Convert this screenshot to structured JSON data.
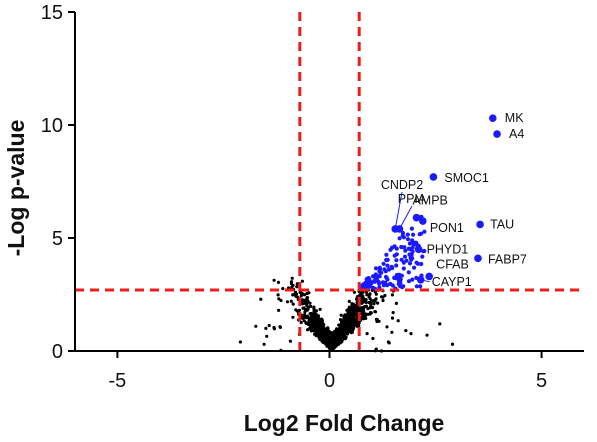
{
  "chart_data": {
    "type": "scatter",
    "title": "",
    "xlabel": "Log2 Fold Change",
    "ylabel": "-Log p-value",
    "xlim": [
      -6,
      6
    ],
    "ylim": [
      0,
      15
    ],
    "x_ticks": [
      -5,
      0,
      5
    ],
    "y_ticks": [
      0,
      5,
      10,
      15
    ],
    "x_tick_labels": [
      "-5",
      "0",
      "5"
    ],
    "y_tick_labels": [
      "0",
      "5",
      "10",
      "15"
    ],
    "grid": false,
    "legend": "none",
    "thresholds": {
      "log2fc_low": -0.7,
      "log2fc_high": 0.7,
      "neg_log_p": 2.7,
      "line_color": "#ee1c1c",
      "line_style": "dashed"
    },
    "colors": {
      "significant_up": "#1a1aff",
      "not_significant": "#000000",
      "axis": "#000000"
    },
    "background_points_note": "thousands of unlabeled black points clustered near x=0, y<3 (V-shaped)",
    "labeled_points": [
      {
        "label": "MK",
        "x": 3.85,
        "y": 10.3
      },
      {
        "label": "A4",
        "x": 3.95,
        "y": 9.6
      },
      {
        "label": "SMOC1",
        "x": 2.45,
        "y": 7.7
      },
      {
        "label": "CNDP2",
        "x": 1.55,
        "y": 5.4
      },
      {
        "label": "PPIA",
        "x": 1.65,
        "y": 5.4
      },
      {
        "label": "AMPB",
        "x": 2.05,
        "y": 5.9
      },
      {
        "label": "PON1",
        "x": 2.2,
        "y": 5.75
      },
      {
        "label": "TAU",
        "x": 3.55,
        "y": 5.6
      },
      {
        "label": "PHYD1",
        "x": 2.1,
        "y": 4.5
      },
      {
        "label": "FABP7",
        "x": 3.5,
        "y": 4.1
      },
      {
        "label": "CFAB",
        "x": 2.35,
        "y": 3.3
      },
      {
        "label": "CAYP1",
        "x": 2.15,
        "y": 3.15
      }
    ]
  }
}
